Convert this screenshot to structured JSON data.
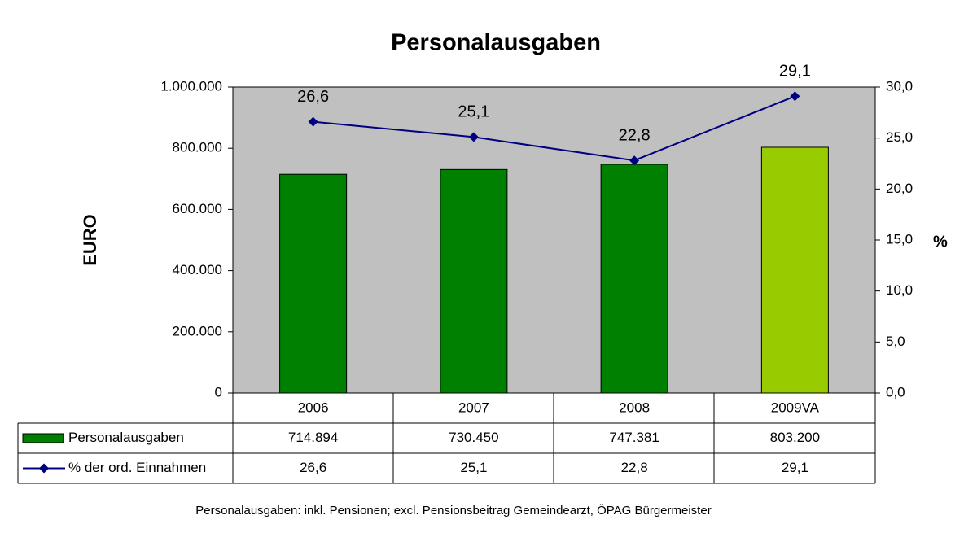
{
  "chart_data": {
    "type": "bar-line-table",
    "title": "Personalausgaben",
    "y_label": "EURO",
    "y2_label": "%",
    "footnote": "Personalausgaben: inkl. Pensionen; excl. Pensionsbeitrag Gemeindearzt, ÖPAG Bürgermeister",
    "categories": [
      "2006",
      "2007",
      "2008",
      "2009VA"
    ],
    "ylim": [
      0,
      1000000
    ],
    "yticks": [
      0,
      {
        "value": 200000,
        "label": "200.000"
      },
      {
        "value": 400000,
        "label": "400.000"
      },
      {
        "value": 600000,
        "label": "600.000"
      },
      {
        "value": 800000,
        "label": "800.000"
      },
      {
        "value": 1000000,
        "label": "1.000.000"
      }
    ],
    "y2lim": [
      0,
      30
    ],
    "y2ticks": [
      {
        "value": 0,
        "label": "0,0"
      },
      {
        "value": 5,
        "label": "5,0"
      },
      {
        "value": 10,
        "label": "10,0"
      },
      {
        "value": 15,
        "label": "15,0"
      },
      {
        "value": 20,
        "label": "20,0"
      },
      {
        "value": 25,
        "label": "25,0"
      },
      {
        "value": 30,
        "label": "30,0"
      }
    ],
    "plot_background": "#c0c0c0",
    "series": [
      {
        "name": "Personalausgaben",
        "type": "bar",
        "color": "#008000",
        "colors": [
          "#008000",
          "#008000",
          "#008000",
          "#99cc00"
        ],
        "values": [
          714894,
          730450,
          747381,
          803200
        ],
        "value_labels": [
          "714.894",
          "730.450",
          "747.381",
          "803.200"
        ]
      },
      {
        "name": "% der ord. Einnahmen",
        "type": "line",
        "axis": "y2",
        "color": "#000080",
        "values": [
          26.6,
          25.1,
          22.8,
          29.1
        ],
        "value_labels": [
          "26,6",
          "25,1",
          "22,8",
          "29,1"
        ]
      }
    ]
  }
}
